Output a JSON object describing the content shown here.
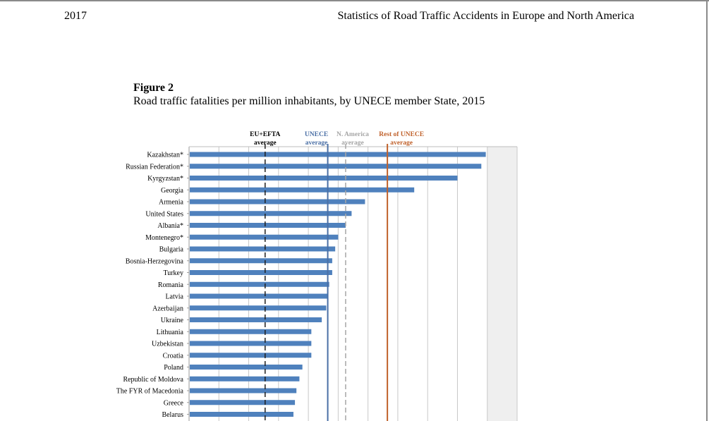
{
  "page": {
    "year": "2017",
    "doc_title": "Statistics of Road Traffic Accidents in Europe and North America"
  },
  "figure": {
    "label": "Figure 2",
    "caption": "Road traffic fatalities per million inhabitants, by UNECE member State, 2015"
  },
  "colors": {
    "bar": "#4f81bd",
    "eu_efta_line": "#1f1f1f",
    "unece_line": "#4a6fa5",
    "na_line": "#a6a6a6",
    "rest_line": "#c0612b",
    "grid": "#c8c8c8",
    "plot_band": "#efefef"
  },
  "chart_data": {
    "type": "bar",
    "orientation": "horizontal",
    "categories": [
      "Kazakhstan*",
      "Russian Federation*",
      "Kyrgyzstan*",
      "Georgia",
      "Armenia",
      "United States",
      "Albania*",
      "Montenegro*",
      "Bulgaria",
      "Bosnia-Herzegovina",
      "Turkey",
      "Romania",
      "Latvia",
      "Azerbaijan",
      "Ukraine",
      "Lithuania",
      "Uzbekistan",
      "Croatia",
      "Poland",
      "Republic of Moldova",
      "The FYR of Macedonia",
      "Greece",
      "Belarus"
    ],
    "values": [
      199,
      196,
      180,
      151,
      118,
      109,
      105,
      100,
      98,
      96,
      96,
      94,
      93,
      92,
      89,
      82,
      82,
      82,
      76,
      74,
      72,
      71,
      70
    ],
    "xlim": [
      0,
      220
    ],
    "grid": true,
    "reference_lines": [
      {
        "name": "EU+EFTA average",
        "label_line1": "EU+EFTA",
        "label_line2": "average",
        "value": 51,
        "style": "dashed",
        "color": "#1f1f1f"
      },
      {
        "name": "UNECE average",
        "label_line1": "UNECE",
        "label_line2": "average",
        "value": 93,
        "style": "solid",
        "color": "#4a6fa5"
      },
      {
        "name": "N. America average",
        "label_line1": "N. America",
        "label_line2": "average",
        "value": 105,
        "style": "dashed",
        "color": "#a6a6a6"
      },
      {
        "name": "Rest of UNECE average",
        "label_line1": "Rest of UNECE",
        "label_line2": "average",
        "value": 133,
        "style": "solid",
        "color": "#c0612b"
      }
    ]
  }
}
